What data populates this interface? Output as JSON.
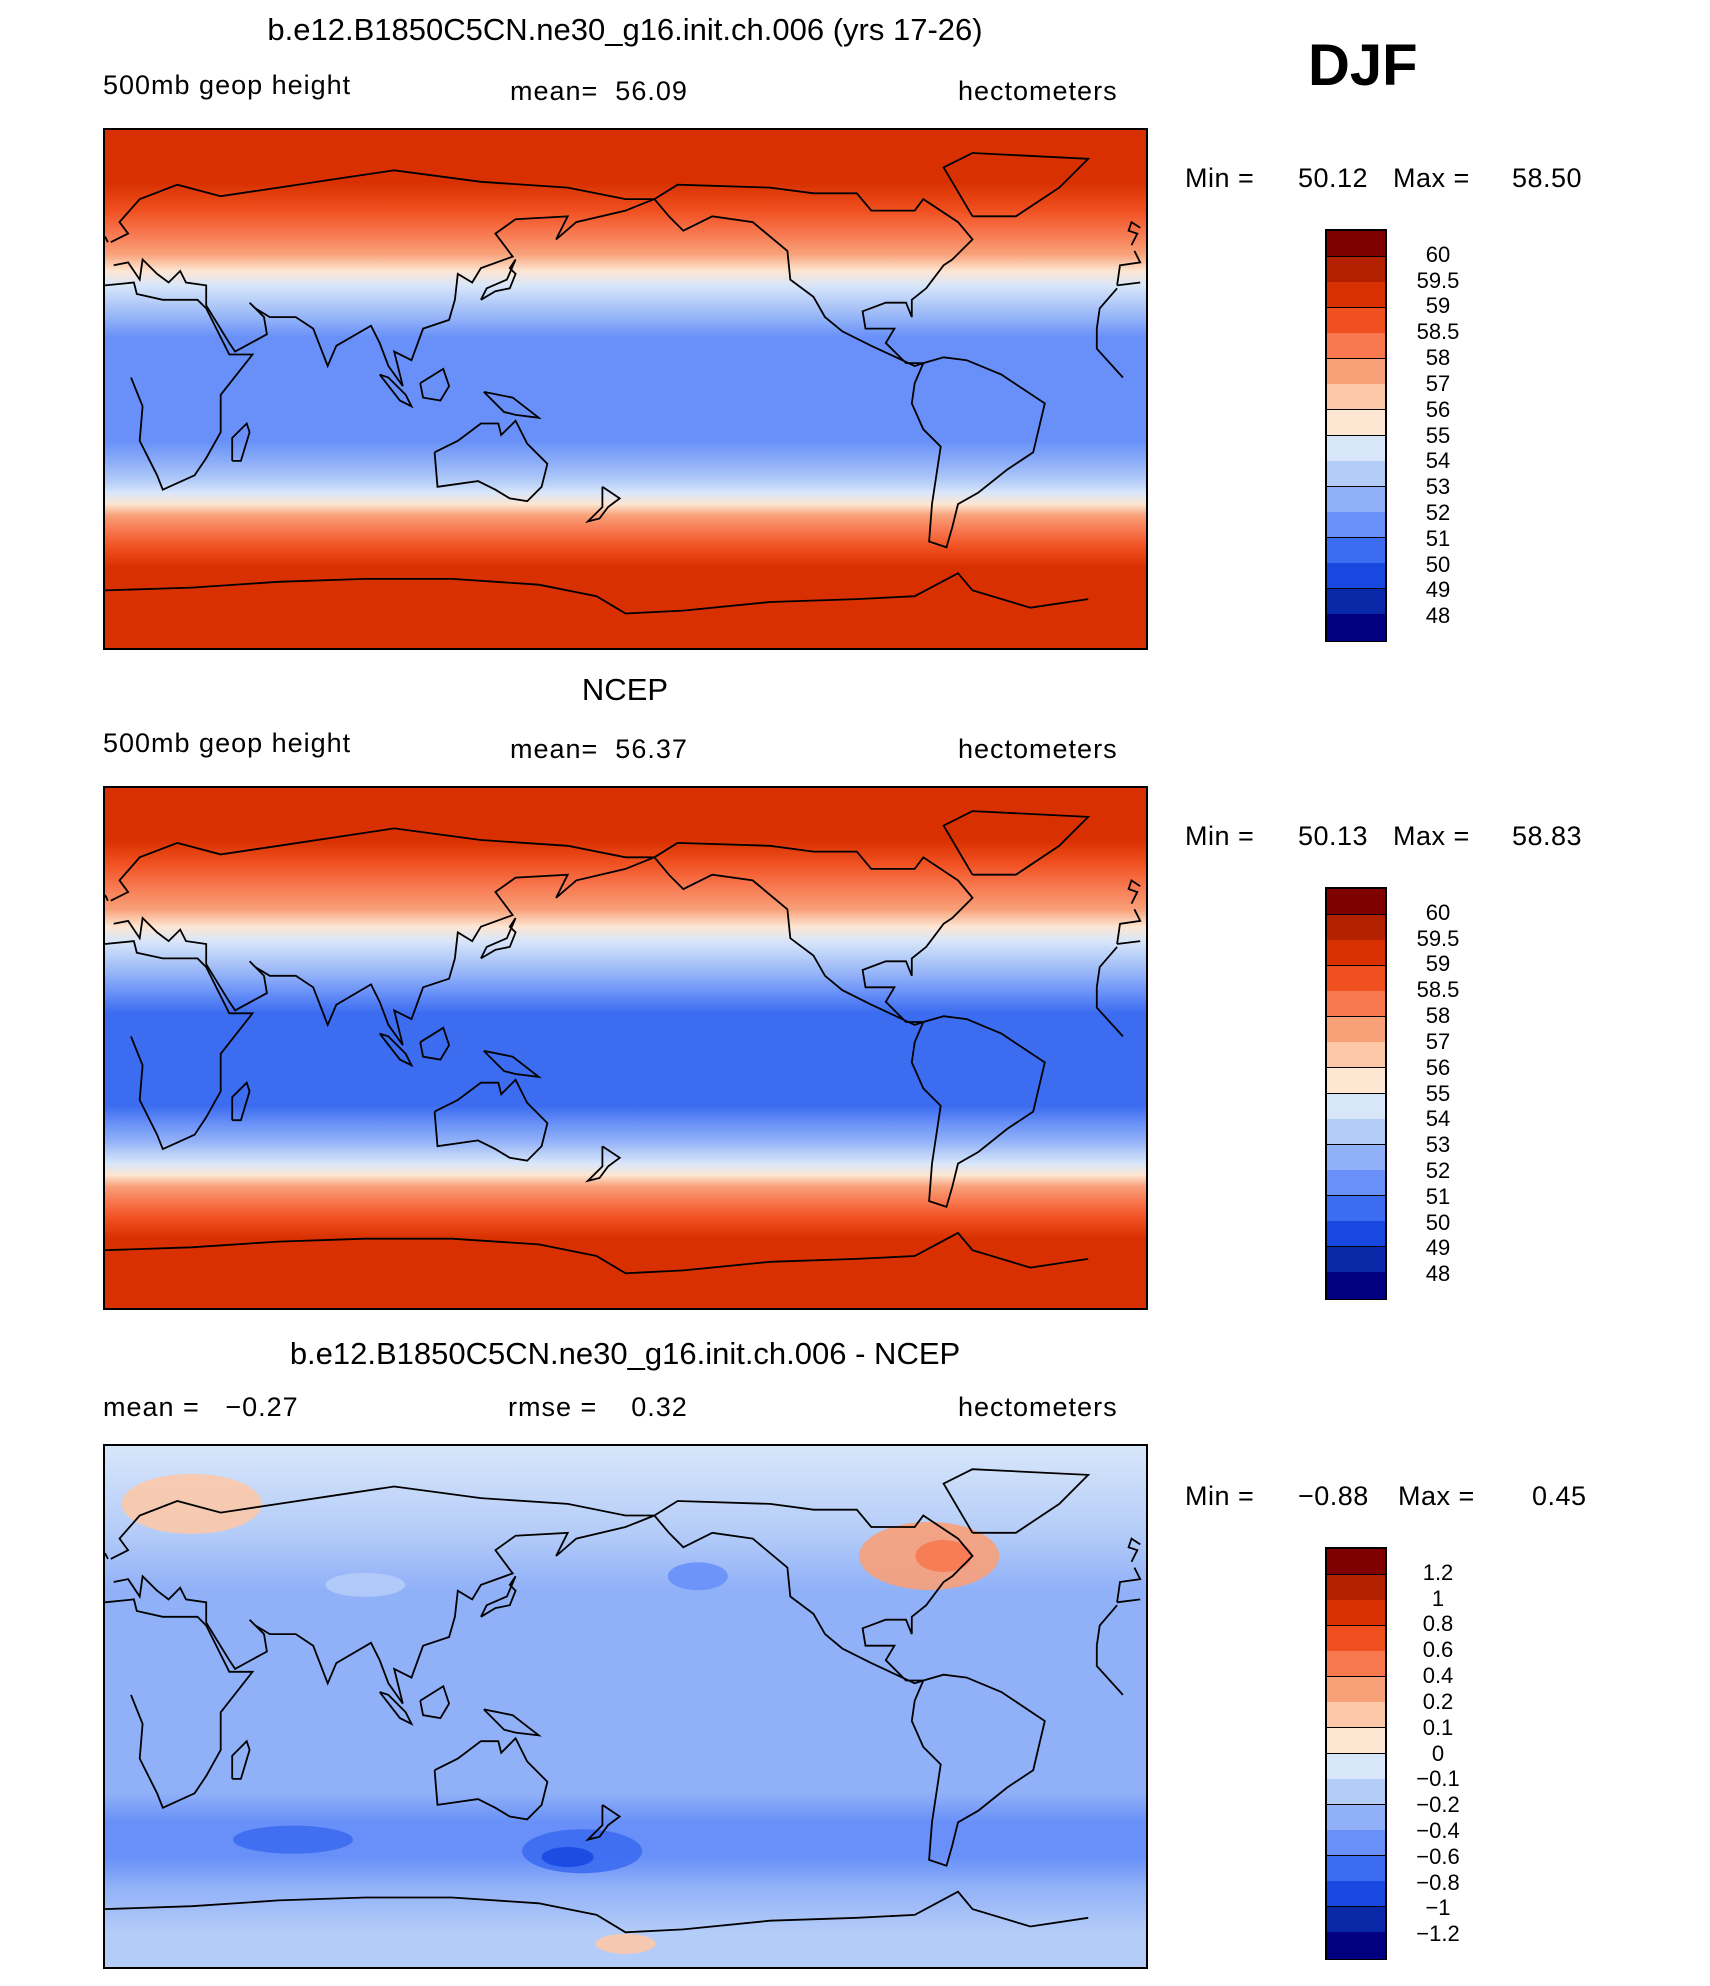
{
  "season": "DJF",
  "panels": [
    {
      "title": "b.e12.B1850C5CN.ne30_g16.init.ch.006 (yrs 17-26)",
      "left_label": "500mb geop height",
      "center_label": "mean=  56.09",
      "units": "hectometers",
      "min_label": "Min =",
      "min_value": "50.12",
      "max_label": "Max =",
      "max_value": "58.50",
      "colorbar_labels": [
        "60",
        "59.5",
        "59",
        "58.5",
        "58",
        "57",
        "56",
        "55",
        "54",
        "53",
        "52",
        "51",
        "50",
        "49",
        "48"
      ],
      "colors": [
        "#800000",
        "#b22000",
        "#d83000",
        "#f05020",
        "#f87850",
        "#f8a078",
        "#fcc8a8",
        "#fde6d2",
        "#d8e6fa",
        "#b4ccf8",
        "#90b0f8",
        "#6890f8",
        "#3c6cf0",
        "#1848e0",
        "#0828a8",
        "#000080"
      ],
      "bands": [
        {
          "lat": 90,
          "level": 2
        },
        {
          "lat": 72,
          "level": 2
        },
        {
          "lat": 62,
          "level": 3
        },
        {
          "lat": 54,
          "level": 4
        },
        {
          "lat": 47,
          "level": 5
        },
        {
          "lat": 41,
          "level": 7
        },
        {
          "lat": 36,
          "level": 8
        },
        {
          "lat": 30,
          "level": 9
        },
        {
          "lat": 24,
          "level": 10
        },
        {
          "lat": 18,
          "level": 11
        },
        {
          "lat": 10,
          "level": 11
        },
        {
          "lat": -18,
          "level": 11
        },
        {
          "lat": -26,
          "level": 10
        },
        {
          "lat": -32,
          "level": 9
        },
        {
          "lat": -36,
          "level": 8
        },
        {
          "lat": -40,
          "level": 7
        },
        {
          "lat": -44,
          "level": 5
        },
        {
          "lat": -49,
          "level": 4
        },
        {
          "lat": -55,
          "level": 3
        },
        {
          "lat": -62,
          "level": 2
        },
        {
          "lat": -90,
          "level": 2
        }
      ]
    },
    {
      "title": "NCEP",
      "left_label": "500mb geop height",
      "center_label": "mean=  56.37",
      "units": "hectometers",
      "min_label": "Min =",
      "min_value": "50.13",
      "max_label": "Max =",
      "max_value": "58.83",
      "colorbar_labels": [
        "60",
        "59.5",
        "59",
        "58.5",
        "58",
        "57",
        "56",
        "55",
        "54",
        "53",
        "52",
        "51",
        "50",
        "49",
        "48"
      ],
      "colors": [
        "#800000",
        "#b22000",
        "#d83000",
        "#f05020",
        "#f87850",
        "#f8a078",
        "#fcc8a8",
        "#fde6d2",
        "#d8e6fa",
        "#b4ccf8",
        "#90b0f8",
        "#6890f8",
        "#3c6cf0",
        "#1848e0",
        "#0828a8",
        "#000080"
      ],
      "bands": [
        {
          "lat": 90,
          "level": 2
        },
        {
          "lat": 72,
          "level": 2
        },
        {
          "lat": 64,
          "level": 3
        },
        {
          "lat": 56,
          "level": 4
        },
        {
          "lat": 48,
          "level": 5
        },
        {
          "lat": 42,
          "level": 7
        },
        {
          "lat": 37,
          "level": 8
        },
        {
          "lat": 31,
          "level": 9
        },
        {
          "lat": 25,
          "level": 10
        },
        {
          "lat": 19,
          "level": 11
        },
        {
          "lat": 12,
          "level": 12
        },
        {
          "lat": -20,
          "level": 12
        },
        {
          "lat": -26,
          "level": 11
        },
        {
          "lat": -32,
          "level": 10
        },
        {
          "lat": -36,
          "level": 9
        },
        {
          "lat": -40,
          "level": 8
        },
        {
          "lat": -44,
          "level": 7
        },
        {
          "lat": -48,
          "level": 5
        },
        {
          "lat": -53,
          "level": 4
        },
        {
          "lat": -59,
          "level": 3
        },
        {
          "lat": -66,
          "level": 2
        },
        {
          "lat": -90,
          "level": 2
        }
      ]
    },
    {
      "title": "b.e12.B1850C5CN.ne30_g16.init.ch.006 - NCEP",
      "left_label": "mean =   −0.27",
      "center_label": "rmse =    0.32",
      "units": "hectometers",
      "min_label": "Min =",
      "min_value": "−0.88",
      "max_label": "Max =",
      "max_value": "0.45",
      "colorbar_labels": [
        "1.2",
        "1",
        "0.8",
        "0.6",
        "0.4",
        "0.2",
        "0.1",
        "0",
        "−0.1",
        "−0.2",
        "−0.4",
        "−0.6",
        "−0.8",
        "−1",
        "−1.2"
      ],
      "colors": [
        "#800000",
        "#b22000",
        "#d83000",
        "#f05020",
        "#f87850",
        "#f8a078",
        "#fcc8a8",
        "#fde6d2",
        "#d8e6fa",
        "#b4ccf8",
        "#90b0f8",
        "#6890f8",
        "#3c6cf0",
        "#1848e0",
        "#0828a8",
        "#000080"
      ],
      "bands": [
        {
          "lat": 90,
          "level": 8
        },
        {
          "lat": 60,
          "level": 9
        },
        {
          "lat": 40,
          "level": 10
        },
        {
          "lat": -30,
          "level": 10
        },
        {
          "lat": -40,
          "level": 11
        },
        {
          "lat": -52,
          "level": 11
        },
        {
          "lat": -62,
          "level": 10
        },
        {
          "lat": -78,
          "level": 9
        },
        {
          "lat": -90,
          "level": 9
        }
      ]
    }
  ]
}
